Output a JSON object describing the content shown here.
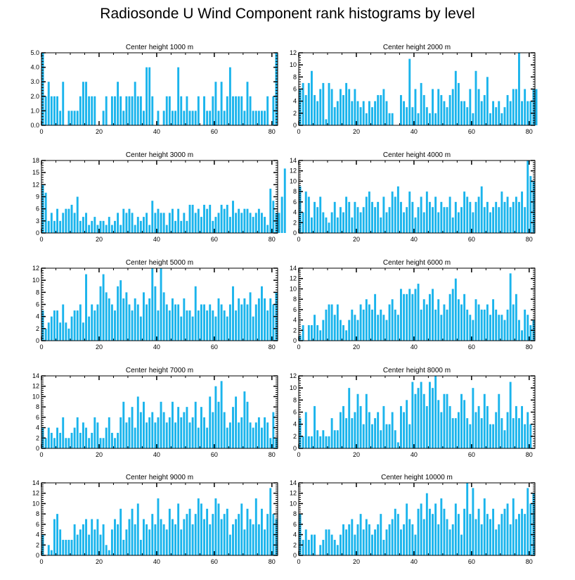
{
  "title": "Radiosonde U Wind Component rank histograms by level",
  "style": {
    "bar_color": "#1ab4ec",
    "axis_color": "#000000"
  },
  "chart_data": [
    {
      "type": "bar",
      "title": "Center height 1000 m",
      "xlim": [
        0,
        82
      ],
      "ylim": [
        0,
        5
      ],
      "xticks": [
        0,
        20,
        40,
        60,
        80
      ],
      "yticks": [
        0,
        1,
        2,
        3,
        4,
        5
      ],
      "ytick_labels": [
        "0.0",
        "1.0",
        "2.0",
        "3.0",
        "4.0",
        "5.0"
      ],
      "values": [
        5,
        2,
        3,
        2,
        2,
        2,
        1,
        3,
        0,
        1,
        1,
        1,
        1,
        2,
        3,
        3,
        2,
        2,
        2,
        0,
        0,
        1,
        2,
        0,
        2,
        2,
        3,
        2,
        1,
        2,
        2,
        2,
        3,
        2,
        2,
        1,
        4,
        4,
        2,
        0,
        1,
        0,
        1,
        2,
        2,
        1,
        1,
        4,
        2,
        1,
        2,
        1,
        1,
        1,
        2,
        0,
        2,
        1,
        1,
        2,
        3,
        1,
        3,
        1,
        2,
        4,
        2,
        2,
        2,
        2,
        1,
        3,
        2,
        1,
        1,
        1,
        1,
        1,
        2,
        0,
        2,
        5
      ]
    },
    {
      "type": "bar",
      "title": "Center height 2000 m",
      "xlim": [
        0,
        82
      ],
      "ylim": [
        0,
        12
      ],
      "xticks": [
        0,
        20,
        40,
        60,
        80
      ],
      "yticks": [
        0,
        2,
        4,
        6,
        8,
        10,
        12
      ],
      "values": [
        6,
        7,
        5,
        7,
        9,
        5,
        4,
        6,
        7,
        1,
        7,
        6,
        3,
        4,
        6,
        5,
        7,
        6,
        4,
        6,
        4,
        3,
        4,
        2,
        4,
        3,
        4,
        5,
        5,
        6,
        4,
        2,
        2,
        0,
        0,
        5,
        4,
        3,
        11,
        3,
        6,
        2,
        7,
        5,
        3,
        2,
        6,
        2,
        6,
        5,
        4,
        3,
        5,
        6,
        9,
        7,
        4,
        4,
        3,
        6,
        2,
        9,
        6,
        4,
        5,
        8,
        2,
        4,
        3,
        4,
        2,
        3,
        5,
        4,
        6,
        6,
        12,
        4,
        6,
        4,
        4,
        6,
        6
      ]
    },
    {
      "type": "bar",
      "title": "Center height 3000 m",
      "xlim": [
        0,
        82
      ],
      "ylim": [
        0,
        18
      ],
      "xticks": [
        0,
        20,
        40,
        60,
        80
      ],
      "yticks": [
        0,
        3,
        6,
        9,
        12,
        15,
        18
      ],
      "values": [
        12,
        10,
        3,
        5,
        3,
        6,
        3,
        5,
        6,
        6,
        7,
        5,
        9,
        3,
        4,
        5,
        2,
        3,
        4,
        2,
        3,
        3,
        2,
        4,
        2,
        3,
        5,
        2,
        6,
        5,
        6,
        5,
        2,
        4,
        3,
        4,
        5,
        2,
        8,
        5,
        6,
        5,
        5,
        2,
        5,
        6,
        3,
        6,
        3,
        5,
        3,
        7,
        7,
        5,
        6,
        4,
        7,
        6,
        7,
        3,
        4,
        5,
        7,
        6,
        7,
        4,
        8,
        5,
        6,
        5,
        6,
        6,
        5,
        4,
        5,
        6,
        5,
        4,
        2,
        11,
        8,
        5,
        5,
        9,
        16
      ]
    },
    {
      "type": "bar",
      "title": "Center height 4000 m",
      "xlim": [
        0,
        82
      ],
      "ylim": [
        0,
        14
      ],
      "xticks": [
        0,
        20,
        40,
        60,
        80
      ],
      "yticks": [
        0,
        2,
        4,
        6,
        8,
        10,
        12,
        14
      ],
      "values": [
        9,
        4,
        8,
        7,
        3,
        6,
        5,
        7,
        4,
        3,
        2,
        4,
        6,
        3,
        5,
        4,
        7,
        6,
        3,
        6,
        5,
        4,
        5,
        7,
        8,
        6,
        5,
        6,
        3,
        7,
        4,
        5,
        8,
        7,
        9,
        6,
        4,
        5,
        8,
        6,
        3,
        5,
        7,
        4,
        8,
        6,
        5,
        7,
        4,
        6,
        5,
        5,
        7,
        3,
        6,
        4,
        5,
        8,
        7,
        6,
        4,
        6,
        7,
        9,
        5,
        6,
        4,
        5,
        6,
        5,
        8,
        6,
        7,
        5,
        6,
        7,
        6,
        8,
        5,
        14,
        11,
        10
      ]
    },
    {
      "type": "bar",
      "title": "Center height 5000 m",
      "xlim": [
        0,
        82
      ],
      "ylim": [
        0,
        12
      ],
      "xticks": [
        0,
        20,
        40,
        60,
        80
      ],
      "yticks": [
        0,
        2,
        4,
        6,
        8,
        10,
        12
      ],
      "values": [
        5,
        2,
        3,
        4,
        5,
        5,
        3,
        6,
        3,
        2,
        4,
        5,
        5,
        6,
        3,
        11,
        4,
        6,
        5,
        6,
        9,
        11,
        8,
        7,
        6,
        5,
        9,
        10,
        7,
        8,
        6,
        5,
        7,
        6,
        4,
        8,
        6,
        7,
        12,
        9,
        5,
        12,
        8,
        6,
        5,
        7,
        6,
        6,
        4,
        7,
        5,
        5,
        4,
        9,
        5,
        6,
        6,
        5,
        6,
        5,
        4,
        7,
        6,
        5,
        4,
        6,
        9,
        5,
        7,
        6,
        7,
        6,
        8,
        4,
        6,
        7,
        9,
        7,
        5,
        7,
        6,
        8
      ]
    },
    {
      "type": "bar",
      "title": "Center height 6000 m",
      "xlim": [
        0,
        82
      ],
      "ylim": [
        0,
        14
      ],
      "xticks": [
        0,
        20,
        40,
        60,
        80
      ],
      "yticks": [
        0,
        2,
        4,
        6,
        8,
        10,
        12,
        14
      ],
      "values": [
        1,
        3,
        0,
        3,
        3,
        5,
        3,
        2,
        4,
        6,
        7,
        7,
        5,
        7,
        4,
        3,
        2,
        4,
        6,
        5,
        4,
        7,
        6,
        8,
        7,
        6,
        9,
        5,
        6,
        5,
        4,
        7,
        8,
        6,
        5,
        10,
        9,
        9,
        10,
        9,
        10,
        11,
        6,
        8,
        7,
        9,
        10,
        6,
        8,
        5,
        7,
        6,
        9,
        10,
        12,
        8,
        7,
        9,
        6,
        5,
        4,
        8,
        7,
        6,
        6,
        7,
        5,
        8,
        6,
        5,
        5,
        4,
        6,
        13,
        7,
        9,
        4,
        2,
        6,
        5,
        3,
        4
      ]
    },
    {
      "type": "bar",
      "title": "Center height 7000 m",
      "xlim": [
        0,
        82
      ],
      "ylim": [
        0,
        14
      ],
      "xticks": [
        0,
        20,
        40,
        60,
        80
      ],
      "yticks": [
        0,
        2,
        4,
        6,
        8,
        10,
        12,
        14
      ],
      "values": [
        4,
        2,
        4,
        3,
        2,
        4,
        3,
        6,
        2,
        2,
        3,
        4,
        6,
        3,
        5,
        4,
        2,
        3,
        6,
        5,
        2,
        2,
        4,
        6,
        3,
        2,
        3,
        6,
        9,
        5,
        6,
        8,
        4,
        10,
        7,
        9,
        5,
        6,
        7,
        5,
        6,
        9,
        7,
        5,
        6,
        9,
        5,
        8,
        6,
        7,
        8,
        5,
        6,
        9,
        4,
        8,
        6,
        4,
        10,
        7,
        12,
        9,
        13,
        7,
        4,
        5,
        8,
        10,
        5,
        6,
        11,
        9,
        5,
        4,
        5,
        6,
        4,
        6,
        5,
        2,
        7,
        2
      ]
    },
    {
      "type": "bar",
      "title": "Center height 8000 m",
      "xlim": [
        0,
        82
      ],
      "ylim": [
        0,
        12
      ],
      "xticks": [
        0,
        20,
        40,
        60,
        80
      ],
      "yticks": [
        0,
        2,
        4,
        6,
        8,
        10,
        12
      ],
      "values": [
        5,
        2,
        6,
        2,
        2,
        7,
        3,
        2,
        3,
        2,
        2,
        5,
        3,
        3,
        6,
        7,
        5,
        10,
        5,
        6,
        9,
        7,
        4,
        9,
        6,
        4,
        5,
        6,
        3,
        7,
        4,
        4,
        6,
        3,
        1,
        7,
        6,
        8,
        4,
        11,
        9,
        10,
        11,
        9,
        7,
        11,
        10,
        12,
        8,
        6,
        9,
        9,
        7,
        5,
        5,
        6,
        9,
        8,
        5,
        4,
        10,
        6,
        7,
        5,
        9,
        7,
        4,
        4,
        6,
        9,
        5,
        3,
        6,
        11,
        5,
        7,
        5,
        7,
        4,
        6,
        4
      ]
    },
    {
      "type": "bar",
      "title": "Center height 9000 m",
      "xlim": [
        0,
        82
      ],
      "ylim": [
        0,
        14
      ],
      "xticks": [
        0,
        20,
        40,
        60,
        80
      ],
      "yticks": [
        0,
        2,
        4,
        6,
        8,
        10,
        12,
        14
      ],
      "values": [
        4,
        0,
        2,
        1,
        7,
        8,
        5,
        3,
        3,
        3,
        3,
        6,
        4,
        5,
        6,
        7,
        4,
        7,
        5,
        7,
        4,
        6,
        2,
        1,
        5,
        7,
        6,
        9,
        3,
        5,
        7,
        9,
        6,
        10,
        3,
        7,
        6,
        5,
        8,
        6,
        11,
        7,
        6,
        5,
        9,
        7,
        6,
        10,
        5,
        7,
        8,
        9,
        6,
        8,
        11,
        10,
        7,
        9,
        6,
        8,
        11,
        10,
        7,
        8,
        9,
        4,
        6,
        7,
        8,
        10,
        5,
        9,
        7,
        6,
        11,
        6,
        9,
        5,
        8,
        13,
        8,
        7
      ]
    },
    {
      "type": "bar",
      "title": "Center height 10000 m",
      "xlim": [
        0,
        82
      ],
      "ylim": [
        0,
        14
      ],
      "xticks": [
        0,
        20,
        40,
        60,
        80
      ],
      "yticks": [
        0,
        2,
        4,
        6,
        8,
        10,
        12,
        14
      ],
      "values": [
        8,
        3,
        5,
        3,
        4,
        4,
        0,
        2,
        3,
        5,
        5,
        4,
        3,
        2,
        4,
        6,
        5,
        6,
        7,
        4,
        6,
        8,
        5,
        7,
        6,
        4,
        5,
        6,
        8,
        3,
        5,
        6,
        7,
        9,
        8,
        5,
        6,
        10,
        7,
        6,
        4,
        9,
        10,
        7,
        12,
        9,
        8,
        10,
        6,
        11,
        9,
        7,
        5,
        6,
        10,
        8,
        4,
        9,
        14,
        8,
        13,
        7,
        9,
        6,
        11,
        8,
        7,
        9,
        5,
        6,
        8,
        9,
        10,
        6,
        11,
        7,
        8,
        9,
        8,
        13,
        10,
        12
      ]
    }
  ]
}
